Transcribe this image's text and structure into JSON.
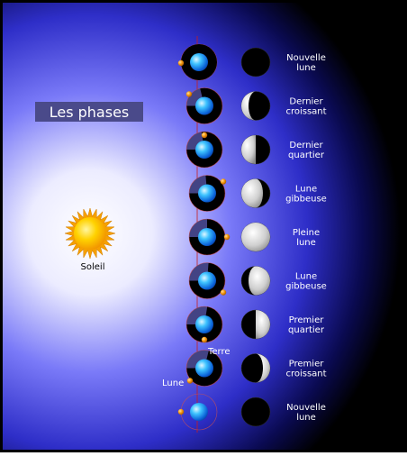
{
  "title": "Les phases",
  "sun_label": "Soleil",
  "earth_label": "Terre",
  "moon_label": "Lune",
  "phases": [
    {
      "line1": "Nouvelle",
      "line2": "lune",
      "illumination": 0.0,
      "lit_side": "none"
    },
    {
      "line1": "Dernier",
      "line2": "croissant",
      "illumination": 0.25,
      "lit_side": "left"
    },
    {
      "line1": "Dernier",
      "line2": "quartier",
      "illumination": 0.5,
      "lit_side": "left"
    },
    {
      "line1": "Lune",
      "line2": "gibbeuse",
      "illumination": 0.75,
      "lit_side": "left"
    },
    {
      "line1": "Pleine",
      "line2": "lune",
      "illumination": 1.0,
      "lit_side": "full"
    },
    {
      "line1": "Lune",
      "line2": "gibbeuse",
      "illumination": 0.75,
      "lit_side": "right"
    },
    {
      "line1": "Premier",
      "line2": "quartier",
      "illumination": 0.5,
      "lit_side": "right"
    },
    {
      "line1": "Premier",
      "line2": "croissant",
      "illumination": 0.25,
      "lit_side": "right"
    },
    {
      "line1": "Nouvelle",
      "line2": "lune",
      "illumination": 0.0,
      "lit_side": "none"
    }
  ],
  "colors": {
    "background_dark": "#000000",
    "background_light": "#ffffff",
    "background_glow": "#5a5af0",
    "sun_core": "#ffd200",
    "sun_rays": "#f5a000",
    "earth": "#2aa8ff",
    "moon": "#f08c00",
    "axis_line": "#c81e1e",
    "title_box": "#4a4a8a"
  }
}
